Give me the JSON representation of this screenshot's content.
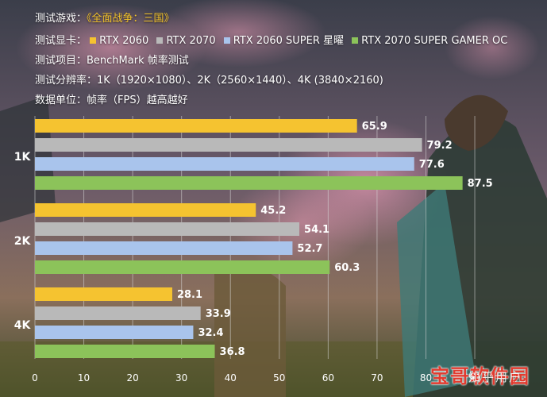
{
  "header": {
    "game_label": "测试游戏：",
    "game_title": "《全面战争：三国》",
    "cards_label": "测试显卡：",
    "test_item": "测试项目：BenchMark 帧率测试",
    "resolution": "测试分辨率：1K（1920×1080）、2K（2560×1440）、4K (3840×2160)",
    "unit": "数据单位：帧率（FPS）越高越好"
  },
  "colors": {
    "rtx2060": "#f5c330",
    "rtx2070": "#b9b9b9",
    "rtx2060s": "#a9c4ec",
    "rtx2070s": "#8cc35a",
    "axis_text": "#ffffff",
    "gridline": "#d9d9d9"
  },
  "chart_data": {
    "type": "bar",
    "orientation": "horizontal",
    "categories": [
      "1K",
      "2K",
      "4K"
    ],
    "series": [
      {
        "name": "RTX 2060",
        "values": [
          65.9,
          45.2,
          28.1
        ]
      },
      {
        "name": "RTX 2070",
        "values": [
          79.2,
          54.1,
          33.9
        ]
      },
      {
        "name": "RTX 2060 SUPER 星曜",
        "values": [
          77.6,
          52.7,
          32.4
        ]
      },
      {
        "name": "RTX 2070 SUPER GAMER OC",
        "values": [
          87.5,
          60.3,
          36.8
        ]
      }
    ],
    "xlim": [
      0,
      90
    ],
    "x_ticks": [
      "0",
      "10",
      "20",
      "30",
      "40",
      "50",
      "60",
      "70",
      "80",
      "90"
    ],
    "grid": true,
    "legend_position": "top"
  },
  "watermarks": {
    "stamp": "宝哥软件园",
    "zhihu": "知乎用户"
  }
}
